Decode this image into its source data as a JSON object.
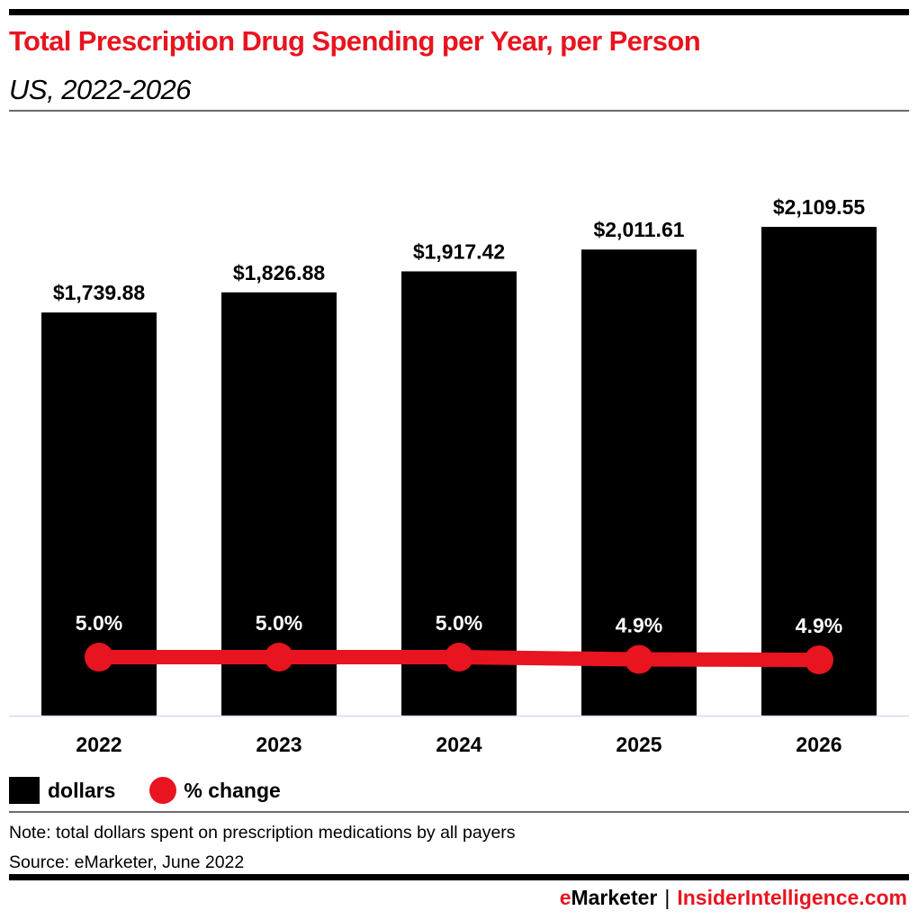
{
  "header": {
    "title": "Total Prescription Drug Spending per Year, per Person",
    "subtitle": "US, 2022-2026"
  },
  "colors": {
    "accent": "#e8141f",
    "bar": "#000000",
    "baseline": "#d4dcef"
  },
  "chart_data": {
    "type": "bar",
    "title": "Total Prescription Drug Spending per Year, per Person",
    "subtitle": "US, 2022-2026",
    "categories": [
      "2022",
      "2023",
      "2024",
      "2025",
      "2026"
    ],
    "series": [
      {
        "name": "dollars",
        "type": "bar",
        "values": [
          1739.88,
          1826.88,
          1917.42,
          2011.61,
          2109.55
        ],
        "labels": [
          "$1,739.88",
          "$1,826.88",
          "$1,917.42",
          "$2,011.61",
          "$2,109.55"
        ]
      },
      {
        "name": "% change",
        "type": "line",
        "values": [
          5.0,
          5.0,
          5.0,
          4.9,
          4.9
        ],
        "labels": [
          "5.0%",
          "5.0%",
          "5.0%",
          "4.9%",
          "4.9%"
        ]
      }
    ],
    "xlabel": "",
    "ylabel": "",
    "ylim": [
      0,
      2109.55
    ],
    "grid": false,
    "legend": "bottom-left"
  },
  "legend": {
    "items": [
      {
        "label": "dollars",
        "icon": "square-swatch"
      },
      {
        "label": "% change",
        "icon": "circle-swatch"
      }
    ]
  },
  "footer": {
    "note": "Note: total dollars spent on prescription medications by all payers",
    "source": "Source: eMarketer, June 2022",
    "brand_e": "e",
    "brand_rest": "Marketer",
    "separator": "|",
    "brand2": "InsiderIntelligence.com"
  }
}
